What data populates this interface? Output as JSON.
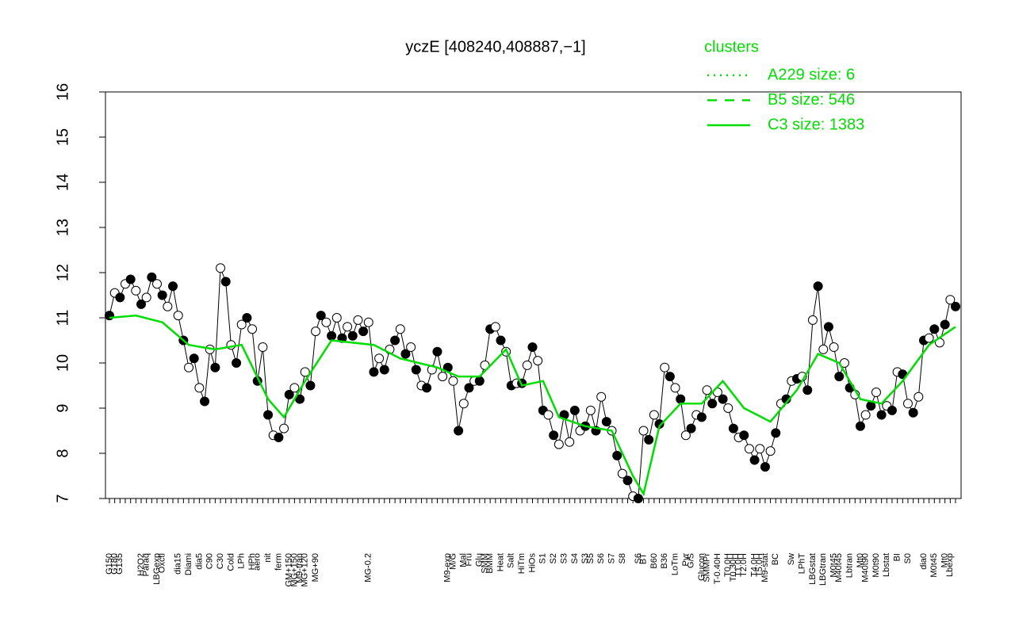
{
  "chart_data": {
    "type": "line",
    "title": "yczE [408240,408887,−1]",
    "ylim": [
      7,
      16
    ],
    "yticks": [
      7,
      8,
      9,
      10,
      11,
      12,
      13,
      14,
      15,
      16
    ],
    "categories": [
      "G150",
      "G180",
      "G135",
      null,
      null,
      null,
      "H2O2",
      "Paraq",
      null,
      "LBGexp",
      "Oxctl",
      null,
      null,
      "dia15",
      null,
      "Diami",
      null,
      "dia5",
      null,
      "C90",
      null,
      "C30",
      null,
      "Cold",
      null,
      "LPh",
      null,
      "HPh",
      "aero",
      null,
      "nit",
      null,
      "ferm",
      null,
      "GM+150",
      "MG+150",
      "M9-tran",
      "MG+120",
      null,
      "MG+90",
      null,
      null,
      null,
      null,
      null,
      null,
      null,
      null,
      null,
      "MG-0.2",
      null,
      null,
      null,
      null,
      null,
      null,
      null,
      null,
      null,
      null,
      null,
      null,
      null,
      null,
      "M9-exp",
      "M/G",
      null,
      "Mal",
      "Fru",
      null,
      "Glu",
      "SMM",
      "BMM",
      null,
      "Heat",
      null,
      "Salt",
      null,
      "HiTm",
      null,
      "HiOs",
      null,
      "S1",
      null,
      "S2",
      null,
      "S3",
      null,
      "S4",
      null,
      "S3",
      "S5",
      null,
      "S6",
      null,
      "S7",
      null,
      "S8",
      null,
      null,
      "S6",
      "BT",
      null,
      "B60",
      null,
      "B36",
      null,
      "LoTm",
      null,
      "Pyr",
      "G/S",
      null,
      "Glucon",
      "SMMPr",
      null,
      "T-0.40H",
      null,
      "T0.0H",
      "T0.30H",
      "T1.0H",
      "T2.0H",
      null,
      "T4.0H",
      "T5.0H",
      "M9-stat",
      null,
      "BC",
      null,
      null,
      "Sw",
      null,
      "LPhT",
      null,
      "LBGstat",
      null,
      "LBGtran",
      null,
      "M0t45",
      "M40t45",
      null,
      "Lbtran",
      null,
      "Mt0",
      "M40t90",
      null,
      "M0t90",
      null,
      "Lbstat",
      null,
      "BI",
      null,
      "S0",
      null,
      null,
      "dia0",
      null,
      "M0t45",
      null,
      "Mt0",
      "Lbexp",
      null
    ],
    "series": [
      {
        "color": "#000000",
        "values": [
          11.05,
          11.55,
          11.45,
          11.75,
          11.85,
          11.6,
          11.3,
          11.45,
          11.9,
          11.75,
          11.5,
          11.25,
          11.7,
          11.05,
          10.5,
          9.9,
          10.1,
          9.45,
          9.15,
          10.3,
          9.9,
          12.1,
          11.8,
          10.4,
          10.0,
          10.85,
          11.0,
          10.75,
          9.6,
          10.35,
          8.85,
          8.4,
          8.35,
          8.55,
          9.3,
          9.45,
          9.2,
          9.8,
          9.5,
          10.7,
          11.05,
          10.9,
          10.6,
          11.0,
          10.55,
          10.8,
          10.6,
          10.95,
          10.7,
          10.9,
          9.8,
          10.1,
          9.85,
          10.3,
          10.5,
          10.75,
          10.2,
          10.35,
          9.85,
          9.5,
          9.45,
          9.85,
          10.25,
          9.7,
          9.9,
          9.6,
          8.5,
          9.1,
          9.45,
          9.6,
          9.6,
          9.95,
          10.75,
          10.8,
          10.5,
          10.25,
          9.5,
          9.55,
          9.55,
          9.95,
          10.35,
          10.05,
          8.95,
          8.85,
          8.4,
          8.2,
          8.85,
          8.25,
          8.95,
          8.5,
          8.6,
          8.95,
          8.5,
          9.25,
          8.7,
          8.5,
          7.95,
          7.55,
          7.4,
          7.05,
          7.0,
          8.5,
          8.3,
          8.85,
          8.65,
          9.9,
          9.7,
          9.45,
          9.2,
          8.4,
          8.55,
          8.85,
          8.8,
          9.4,
          9.1,
          9.35,
          9.2,
          9.0,
          8.55,
          8.35,
          8.4,
          8.1,
          7.85,
          8.1,
          7.7,
          8.05,
          8.45,
          9.1,
          9.2,
          9.6,
          9.65,
          9.7,
          9.4,
          10.95,
          11.7,
          10.3,
          10.8,
          10.35,
          9.7,
          10.0,
          9.45,
          9.3,
          8.6,
          8.85,
          9.05,
          9.35,
          8.85,
          9.05,
          8.95,
          9.8,
          9.75,
          9.1,
          8.9,
          9.25,
          10.5,
          10.55,
          10.75,
          10.45,
          10.85,
          11.4,
          11.25
        ]
      },
      {
        "name": "C3 size: 1383",
        "color": "#00dd00",
        "x": [
          0,
          5,
          10,
          15,
          20,
          25,
          30,
          33,
          37,
          42,
          50,
          55,
          62,
          66,
          70,
          75,
          78,
          82,
          85,
          90,
          95,
          99,
          101,
          104,
          108,
          112,
          116,
          120,
          125,
          130,
          134,
          138,
          142,
          146,
          150,
          155,
          160
        ],
        "values": [
          11.0,
          11.05,
          10.9,
          10.4,
          10.3,
          10.4,
          9.2,
          8.8,
          9.6,
          10.5,
          10.4,
          10.1,
          9.9,
          9.7,
          9.7,
          10.3,
          9.5,
          9.6,
          8.8,
          8.6,
          8.5,
          7.5,
          7.1,
          8.6,
          9.1,
          9.1,
          9.6,
          9.0,
          8.7,
          9.4,
          10.2,
          10.0,
          9.2,
          9.1,
          9.6,
          10.4,
          10.8
        ]
      }
    ],
    "legend": {
      "title": "clusters",
      "entries": [
        "A229 size: 6",
        "B5 size: 546",
        "C3 size: 1383"
      ],
      "color": "#00dd00"
    }
  }
}
